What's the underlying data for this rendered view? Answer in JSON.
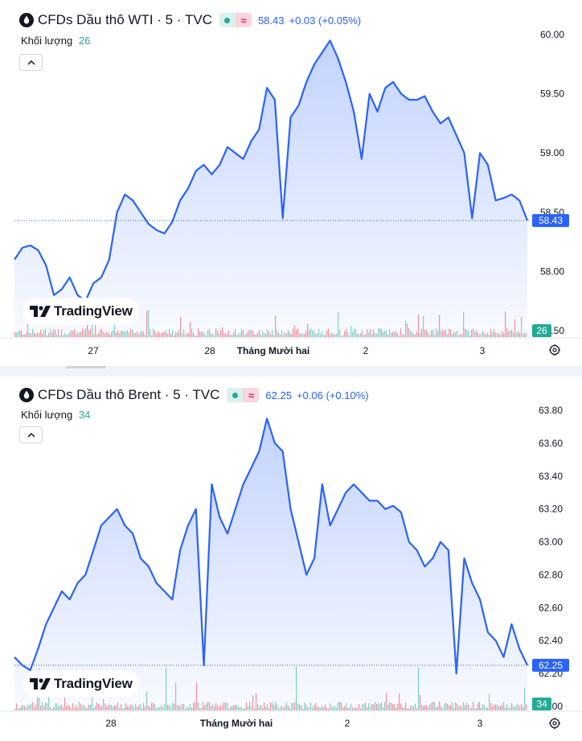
{
  "charts": [
    {
      "title": "CFDs Dầu thô WTI · 5 · TVC",
      "price": "58.43",
      "change": "+0.03 (+0.05%)",
      "volume_label": "Khối lượng",
      "volume_value": "26",
      "price_tag": "58.43",
      "volume_tag": "26",
      "logo": "TradingView"
    },
    {
      "title": "CFDs Dầu thô Brent · 5 · TVC",
      "price": "62.25",
      "change": "+0.06 (+0.10%)",
      "volume_label": "Khối lượng",
      "volume_value": "34",
      "price_tag": "62.25",
      "volume_tag": "34",
      "logo": "TradingView"
    }
  ],
  "colors": {
    "line": "#2962ff",
    "area_top": "#2962ff",
    "volume_up": "#22ab94",
    "volume_down": "#f23645",
    "text": "#131722"
  },
  "chart_data": [
    {
      "type": "area",
      "title": "CFDs Dầu thô WTI · 5 · TVC",
      "y_ticks": [
        "60.00",
        "59.50",
        "59.00",
        "58.50",
        "58.00",
        "57.50"
      ],
      "ylim": [
        57.5,
        60.0
      ],
      "x_ticks": [
        "27",
        "28",
        "Tháng Mười hai",
        "2",
        "3"
      ],
      "last_value": 58.43,
      "series": [
        {
          "values": [
            58.1,
            58.2,
            58.22,
            58.18,
            58.05,
            57.8,
            57.85,
            57.95,
            57.8,
            57.75,
            57.9,
            57.95,
            58.1,
            58.5,
            58.65,
            58.6,
            58.5,
            58.4,
            58.35,
            58.32,
            58.42,
            58.6,
            58.7,
            58.85,
            58.9,
            58.82,
            58.9,
            59.05,
            59.0,
            58.95,
            59.1,
            59.2,
            59.55,
            59.45,
            58.45,
            59.3,
            59.4,
            59.6,
            59.75,
            59.85,
            59.95,
            59.8,
            59.6,
            59.35,
            58.95,
            59.5,
            59.35,
            59.55,
            59.6,
            59.5,
            59.45,
            59.45,
            59.48,
            59.35,
            59.25,
            59.3,
            59.15,
            59.0,
            58.45,
            59.0,
            58.9,
            58.6,
            58.62,
            58.65,
            58.6,
            58.43
          ]
        }
      ],
      "volume_last": 26
    },
    {
      "type": "area",
      "title": "CFDs Dầu thô Brent · 5 · TVC",
      "y_ticks": [
        "63.80",
        "63.60",
        "63.40",
        "63.20",
        "63.00",
        "62.80",
        "62.60",
        "62.40",
        "62.20",
        "62.00"
      ],
      "ylim": [
        62.0,
        63.8
      ],
      "x_ticks": [
        "28",
        "Tháng Mười hai",
        "2",
        "3"
      ],
      "last_value": 62.25,
      "series": [
        {
          "values": [
            62.3,
            62.25,
            62.22,
            62.35,
            62.5,
            62.6,
            62.7,
            62.65,
            62.75,
            62.8,
            62.95,
            63.1,
            63.15,
            63.2,
            63.1,
            63.05,
            62.9,
            62.85,
            62.75,
            62.7,
            62.65,
            62.95,
            63.1,
            63.2,
            62.25,
            63.35,
            63.15,
            63.05,
            63.2,
            63.35,
            63.45,
            63.55,
            63.75,
            63.6,
            63.55,
            63.2,
            63.0,
            62.8,
            62.9,
            63.35,
            63.1,
            63.2,
            63.3,
            63.35,
            63.3,
            63.25,
            63.25,
            63.2,
            63.22,
            63.18,
            63.0,
            62.95,
            62.85,
            62.9,
            63.0,
            62.95,
            62.2,
            62.9,
            62.75,
            62.65,
            62.45,
            62.4,
            62.3,
            62.5,
            62.35,
            62.25
          ]
        }
      ],
      "volume_last": 34
    }
  ]
}
